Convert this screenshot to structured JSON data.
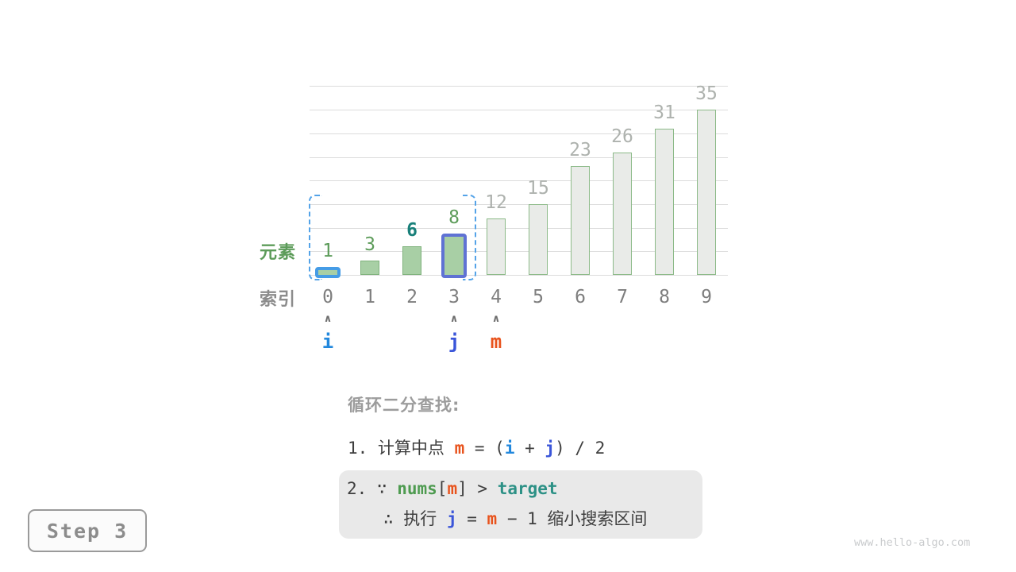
{
  "page": {
    "step_label": "Step 3",
    "watermark": "www.hello-algo.com"
  },
  "chart_data": {
    "type": "bar",
    "title": "",
    "xlabel": "",
    "ylabel": "",
    "categories": [
      "0",
      "1",
      "2",
      "3",
      "4",
      "5",
      "6",
      "7",
      "8",
      "9"
    ],
    "values": [
      1,
      3,
      6,
      8,
      12,
      15,
      23,
      26,
      31,
      35
    ],
    "ylim": [
      0,
      40
    ],
    "gridline_step": 5,
    "grid": true,
    "legend": "none",
    "row_label_elements": "元素",
    "row_label_indices": "索引",
    "bar_styles": [
      "green-blue-outline",
      "green",
      "green",
      "green-indigo-outline",
      "gray",
      "gray",
      "gray",
      "gray",
      "gray",
      "gray"
    ],
    "value_label_styles": [
      "green",
      "green",
      "teal-bold",
      "green",
      "gray",
      "gray",
      "gray",
      "gray",
      "gray",
      "gray"
    ],
    "search_range": {
      "start_index": 0,
      "end_index": 3
    },
    "pointers": [
      {
        "name": "i",
        "index": 0,
        "color_key": "pointer_i"
      },
      {
        "name": "j",
        "index": 3,
        "color_key": "pointer_j"
      },
      {
        "name": "m",
        "index": 4,
        "color_key": "pointer_m"
      }
    ],
    "caret_glyph": "∧"
  },
  "colors": {
    "bar_green_fill": "#A8CFA5",
    "bar_green_border": "#7FB27C",
    "bar_gray_fill": "#E9EBE8",
    "bar_gray_border": "#8CBA88",
    "outline_blue": "#459CE6",
    "outline_indigo": "#5F72D4",
    "range_dash": "#54A3E8",
    "pointer_i": "#2288DD",
    "pointer_j": "#3A55D9",
    "pointer_m": "#E8531D",
    "keyword_nums": "#4E9B50",
    "keyword_target": "#2D9186",
    "value_green": "#5D9C5A",
    "value_teal": "#19807A",
    "value_gray": "#AEB2AE",
    "gridline": "#DCDCDC"
  },
  "explanation": {
    "title": "循环二分查找:",
    "line1_segments": [
      {
        "text": "1. 计算中点 ",
        "style": "plain"
      },
      {
        "text": "m",
        "style": "m"
      },
      {
        "text": " = (",
        "style": "plain"
      },
      {
        "text": "i",
        "style": "i"
      },
      {
        "text": " + ",
        "style": "plain"
      },
      {
        "text": "j",
        "style": "j"
      },
      {
        "text": ") / 2",
        "style": "plain"
      }
    ],
    "box_line1_segments": [
      {
        "text": "2. ∵ ",
        "style": "plain"
      },
      {
        "text": "nums",
        "style": "nums"
      },
      {
        "text": "[",
        "style": "plain"
      },
      {
        "text": "m",
        "style": "m"
      },
      {
        "text": "]",
        "style": "plain"
      },
      {
        "text": " > ",
        "style": "plain"
      },
      {
        "text": "target",
        "style": "target"
      }
    ],
    "box_line2_segments": [
      {
        "text": "∴ 执行 ",
        "style": "plain"
      },
      {
        "text": "j",
        "style": "j"
      },
      {
        "text": " = ",
        "style": "plain"
      },
      {
        "text": "m",
        "style": "m"
      },
      {
        "text": " − 1 ",
        "style": "plain"
      },
      {
        "text": "缩小搜索区间",
        "style": "plain"
      }
    ]
  }
}
